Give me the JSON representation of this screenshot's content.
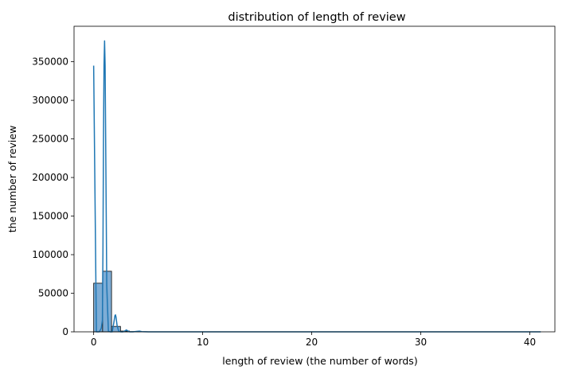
{
  "chart_data": {
    "type": "bar",
    "title": "distribution of length of review",
    "xlabel": "length of review (the number of words)",
    "ylabel": "the number of review",
    "xlim": [
      -1.8,
      42.3
    ],
    "ylim": [
      0,
      396000
    ],
    "x_ticks": [
      0,
      10,
      20,
      30,
      40
    ],
    "y_ticks": [
      0,
      50000,
      100000,
      150000,
      200000,
      250000,
      300000,
      350000
    ],
    "bin_width": 0.82,
    "bins": [
      {
        "x0": 0.0,
        "value": 63000
      },
      {
        "x0": 0.82,
        "value": 78500
      },
      {
        "x0": 1.64,
        "value": 7000
      },
      {
        "x0": 2.46,
        "value": 1000
      },
      {
        "x0": 3.28,
        "value": 300
      },
      {
        "x0": 4.1,
        "value": 100
      }
    ],
    "kde": {
      "x": [
        0,
        0.25,
        0.5,
        0.6,
        0.7,
        0.8,
        0.85,
        0.9,
        0.95,
        1.0,
        1.05,
        1.1,
        1.2,
        1.35,
        1.5,
        1.7,
        1.85,
        1.95,
        2.0,
        2.05,
        2.15,
        2.3,
        2.5,
        2.7,
        2.9,
        3.0,
        3.1,
        3.3,
        3.6,
        4.0,
        4.2,
        4.4,
        5.0,
        10,
        20,
        30,
        41
      ],
      "y": [
        345000,
        0,
        0,
        2000,
        5000,
        15000,
        100000,
        250000,
        345000,
        377000,
        345000,
        250000,
        60000,
        1000,
        0,
        0,
        12000,
        21000,
        22000,
        19000,
        8000,
        500,
        0,
        0,
        1500,
        2500,
        1500,
        0,
        0,
        600,
        900,
        300,
        0,
        0,
        0,
        0,
        0
      ]
    },
    "colors": {
      "bar_fill": "#7eadd6",
      "bar_edge": "#1a1a1a",
      "line": "#1f77b4"
    }
  }
}
